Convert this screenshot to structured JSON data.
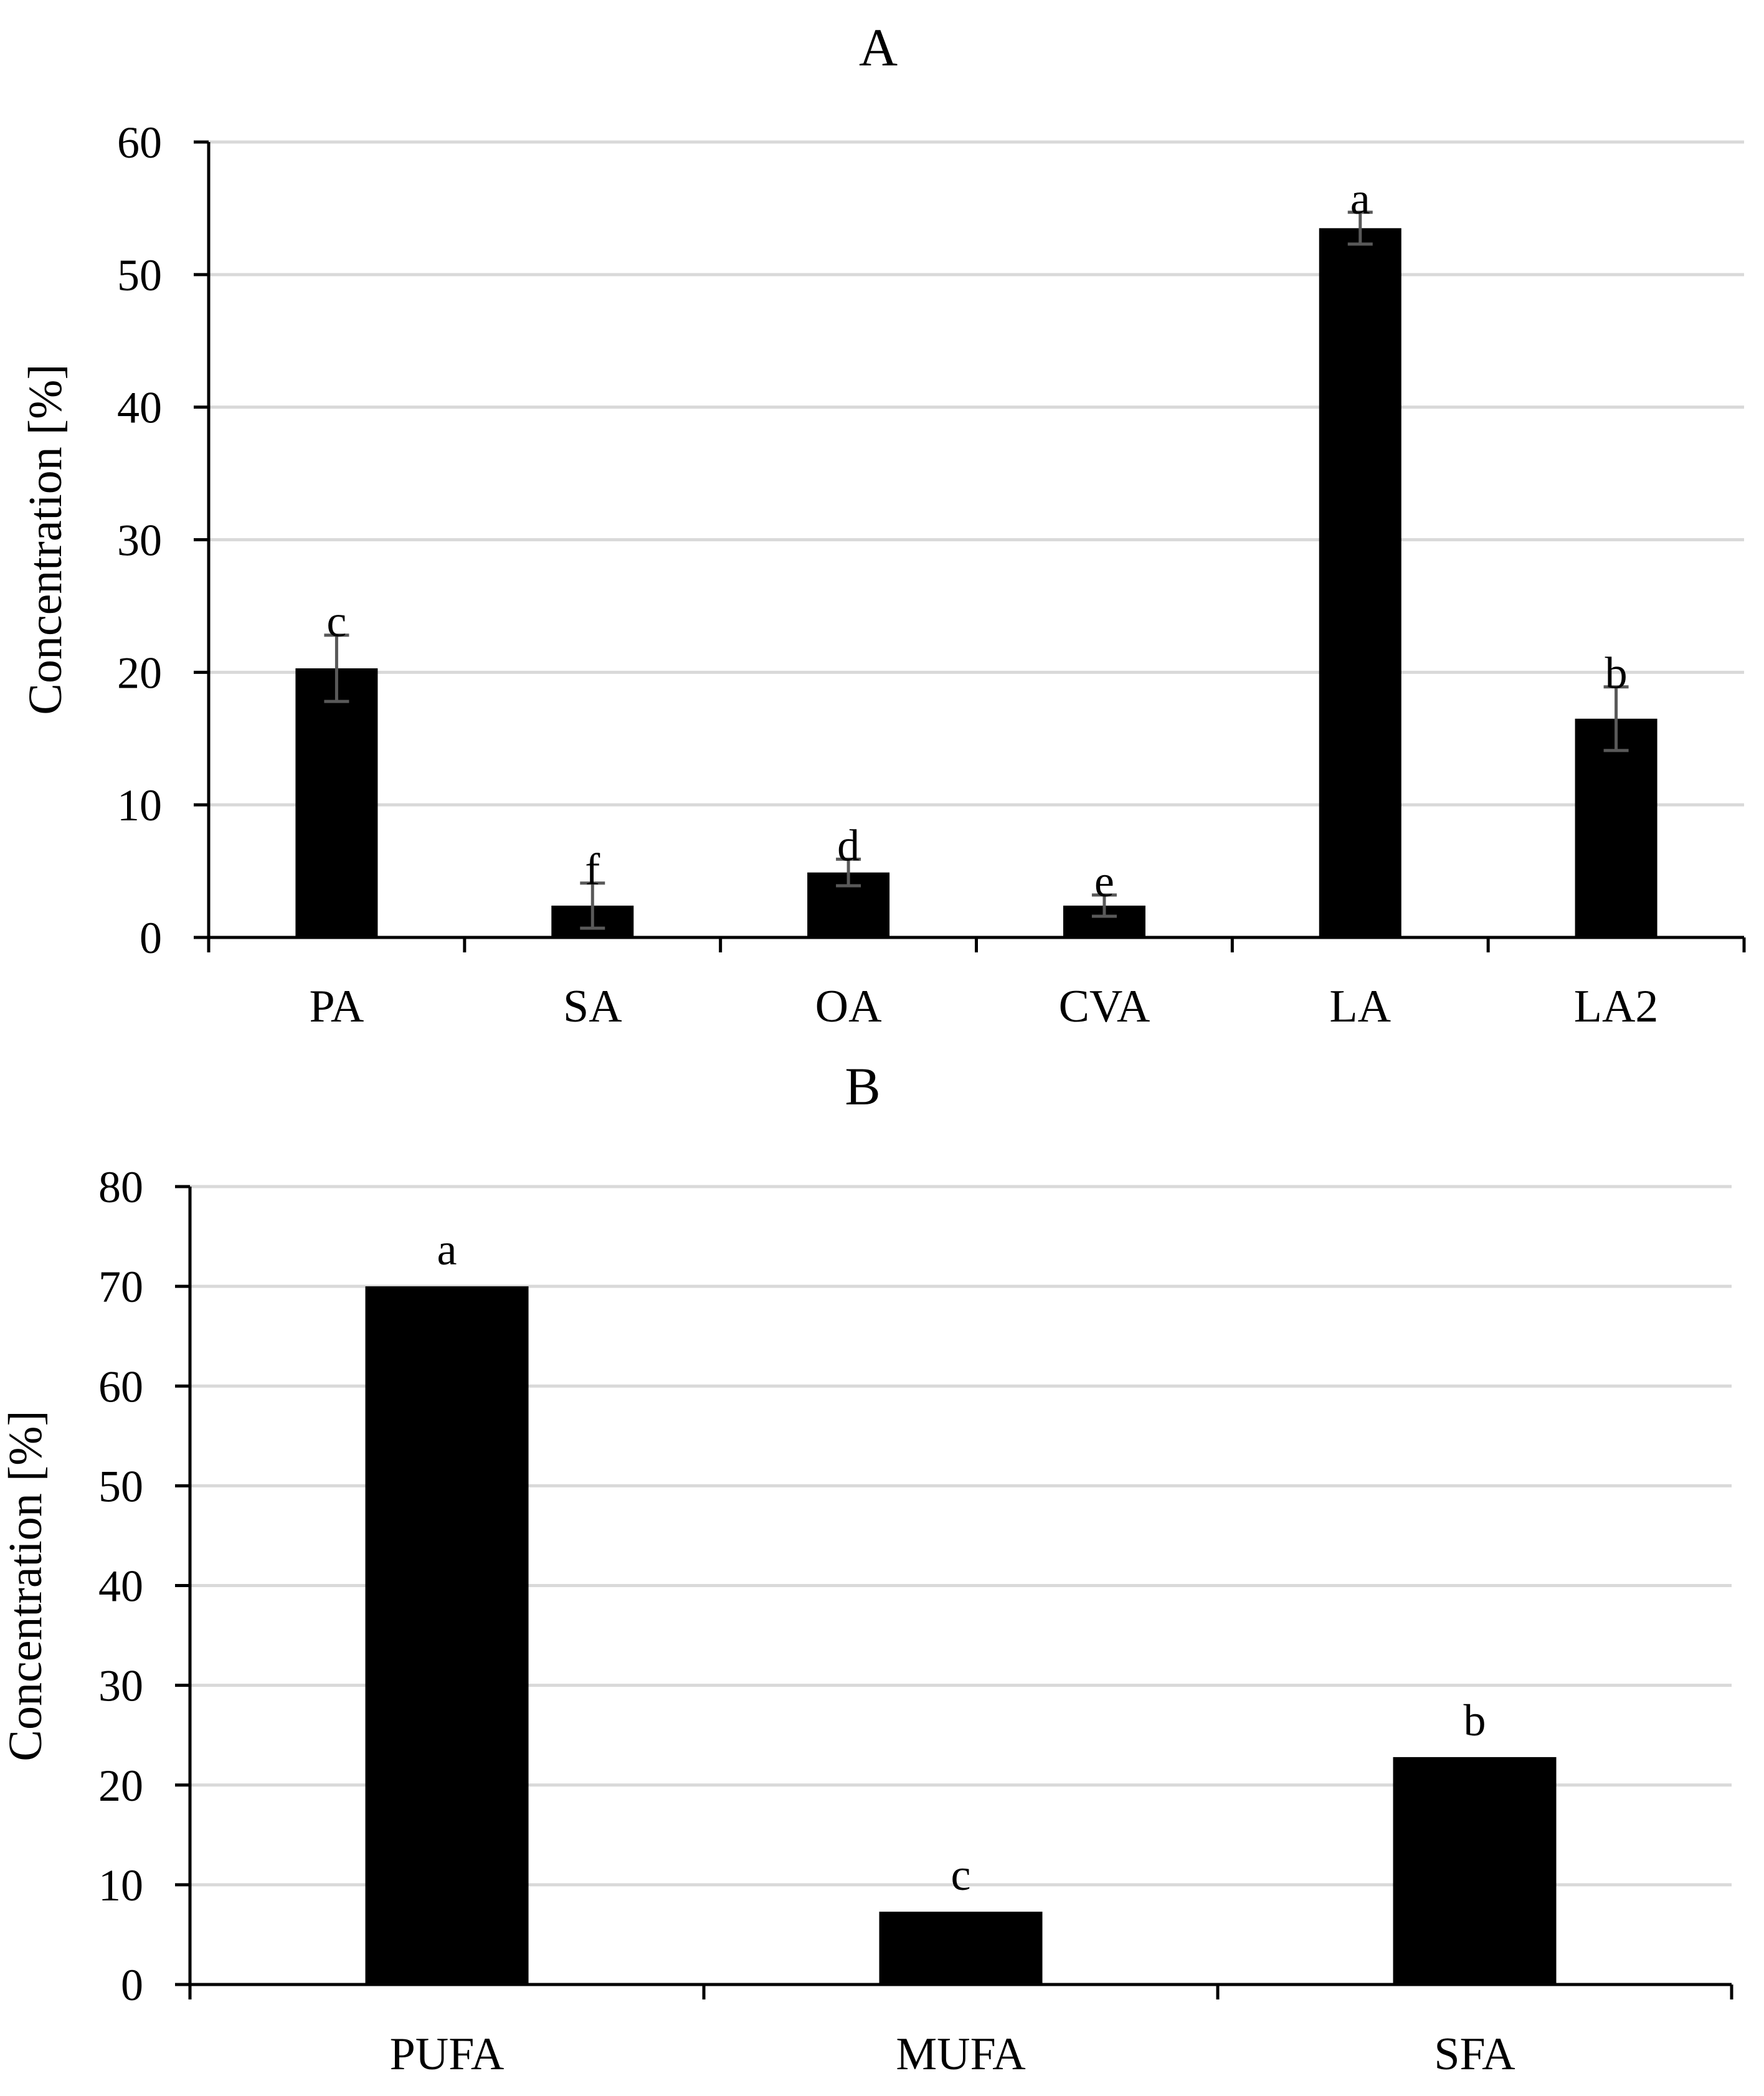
{
  "chart_data": [
    {
      "type": "bar",
      "title": "A",
      "ylabel": "Concentration [%]",
      "xlabel": "",
      "ylim": [
        0,
        60
      ],
      "yticks": [
        0,
        10,
        20,
        30,
        40,
        50,
        60
      ],
      "grid": true,
      "categories": [
        "PA",
        "SA",
        "OA",
        "CVA",
        "LA",
        "LA2"
      ],
      "values": [
        20.3,
        2.4,
        4.9,
        2.4,
        53.5,
        16.5
      ],
      "errors": [
        2.5,
        1.7,
        1.0,
        0.8,
        1.2,
        2.4
      ],
      "annotations": [
        "c",
        "f",
        "d",
        "e",
        "a",
        "b"
      ],
      "bar_color": "#000000"
    },
    {
      "type": "bar",
      "title": "B",
      "ylabel": "Concentration [%]",
      "xlabel": "",
      "ylim": [
        0,
        80
      ],
      "yticks": [
        0,
        10,
        20,
        30,
        40,
        50,
        60,
        70,
        80
      ],
      "grid": true,
      "categories": [
        "PUFA",
        "MUFA",
        "SFA"
      ],
      "values": [
        70.0,
        7.3,
        22.8
      ],
      "annotations": [
        "a",
        "c",
        "b"
      ],
      "bar_color": "#000000"
    }
  ]
}
